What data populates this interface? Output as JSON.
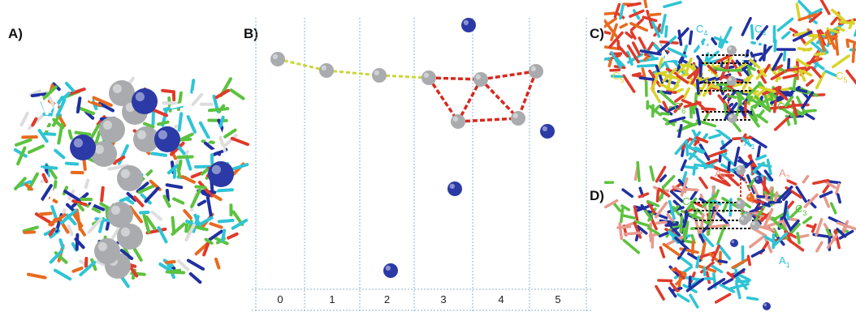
{
  "panels": {
    "a": {
      "label": "A)"
    },
    "b": {
      "label": "B)",
      "column_indices": [
        "0",
        "1",
        "2",
        "3",
        "4",
        "5"
      ]
    },
    "c": {
      "label": "C)",
      "residue_labels": [
        "C4",
        "C4",
        "C5",
        "C5",
        "C6",
        "C6"
      ]
    },
    "d": {
      "label": "D)",
      "residue_labels": [
        "A1",
        "A2",
        "A2",
        "C3",
        "C3",
        "A1"
      ]
    }
  },
  "colors": {
    "silver": "#a9abae",
    "blue_ion": "#2b3aa6",
    "yellow_link": "#c9d63a",
    "red_link": "#d8281f",
    "grid": "#8ab4d9",
    "cyan": "#2fc4d6",
    "green": "#5cc23e",
    "yellow": "#d8d32a",
    "salmon": "#e89a8e",
    "orange": "#e86a1e",
    "red": "#e03a2a",
    "navy": "#2030a0"
  },
  "subscript_labels": {
    "C4": {
      "base": "C",
      "sub": "4"
    },
    "C5": {
      "base": "C",
      "sub": "5"
    },
    "C6": {
      "base": "C",
      "sub": "6"
    },
    "A1": {
      "base": "A",
      "sub": "1"
    },
    "A2": {
      "base": "A",
      "sub": "2"
    },
    "C3": {
      "base": "C",
      "sub": "3"
    }
  }
}
